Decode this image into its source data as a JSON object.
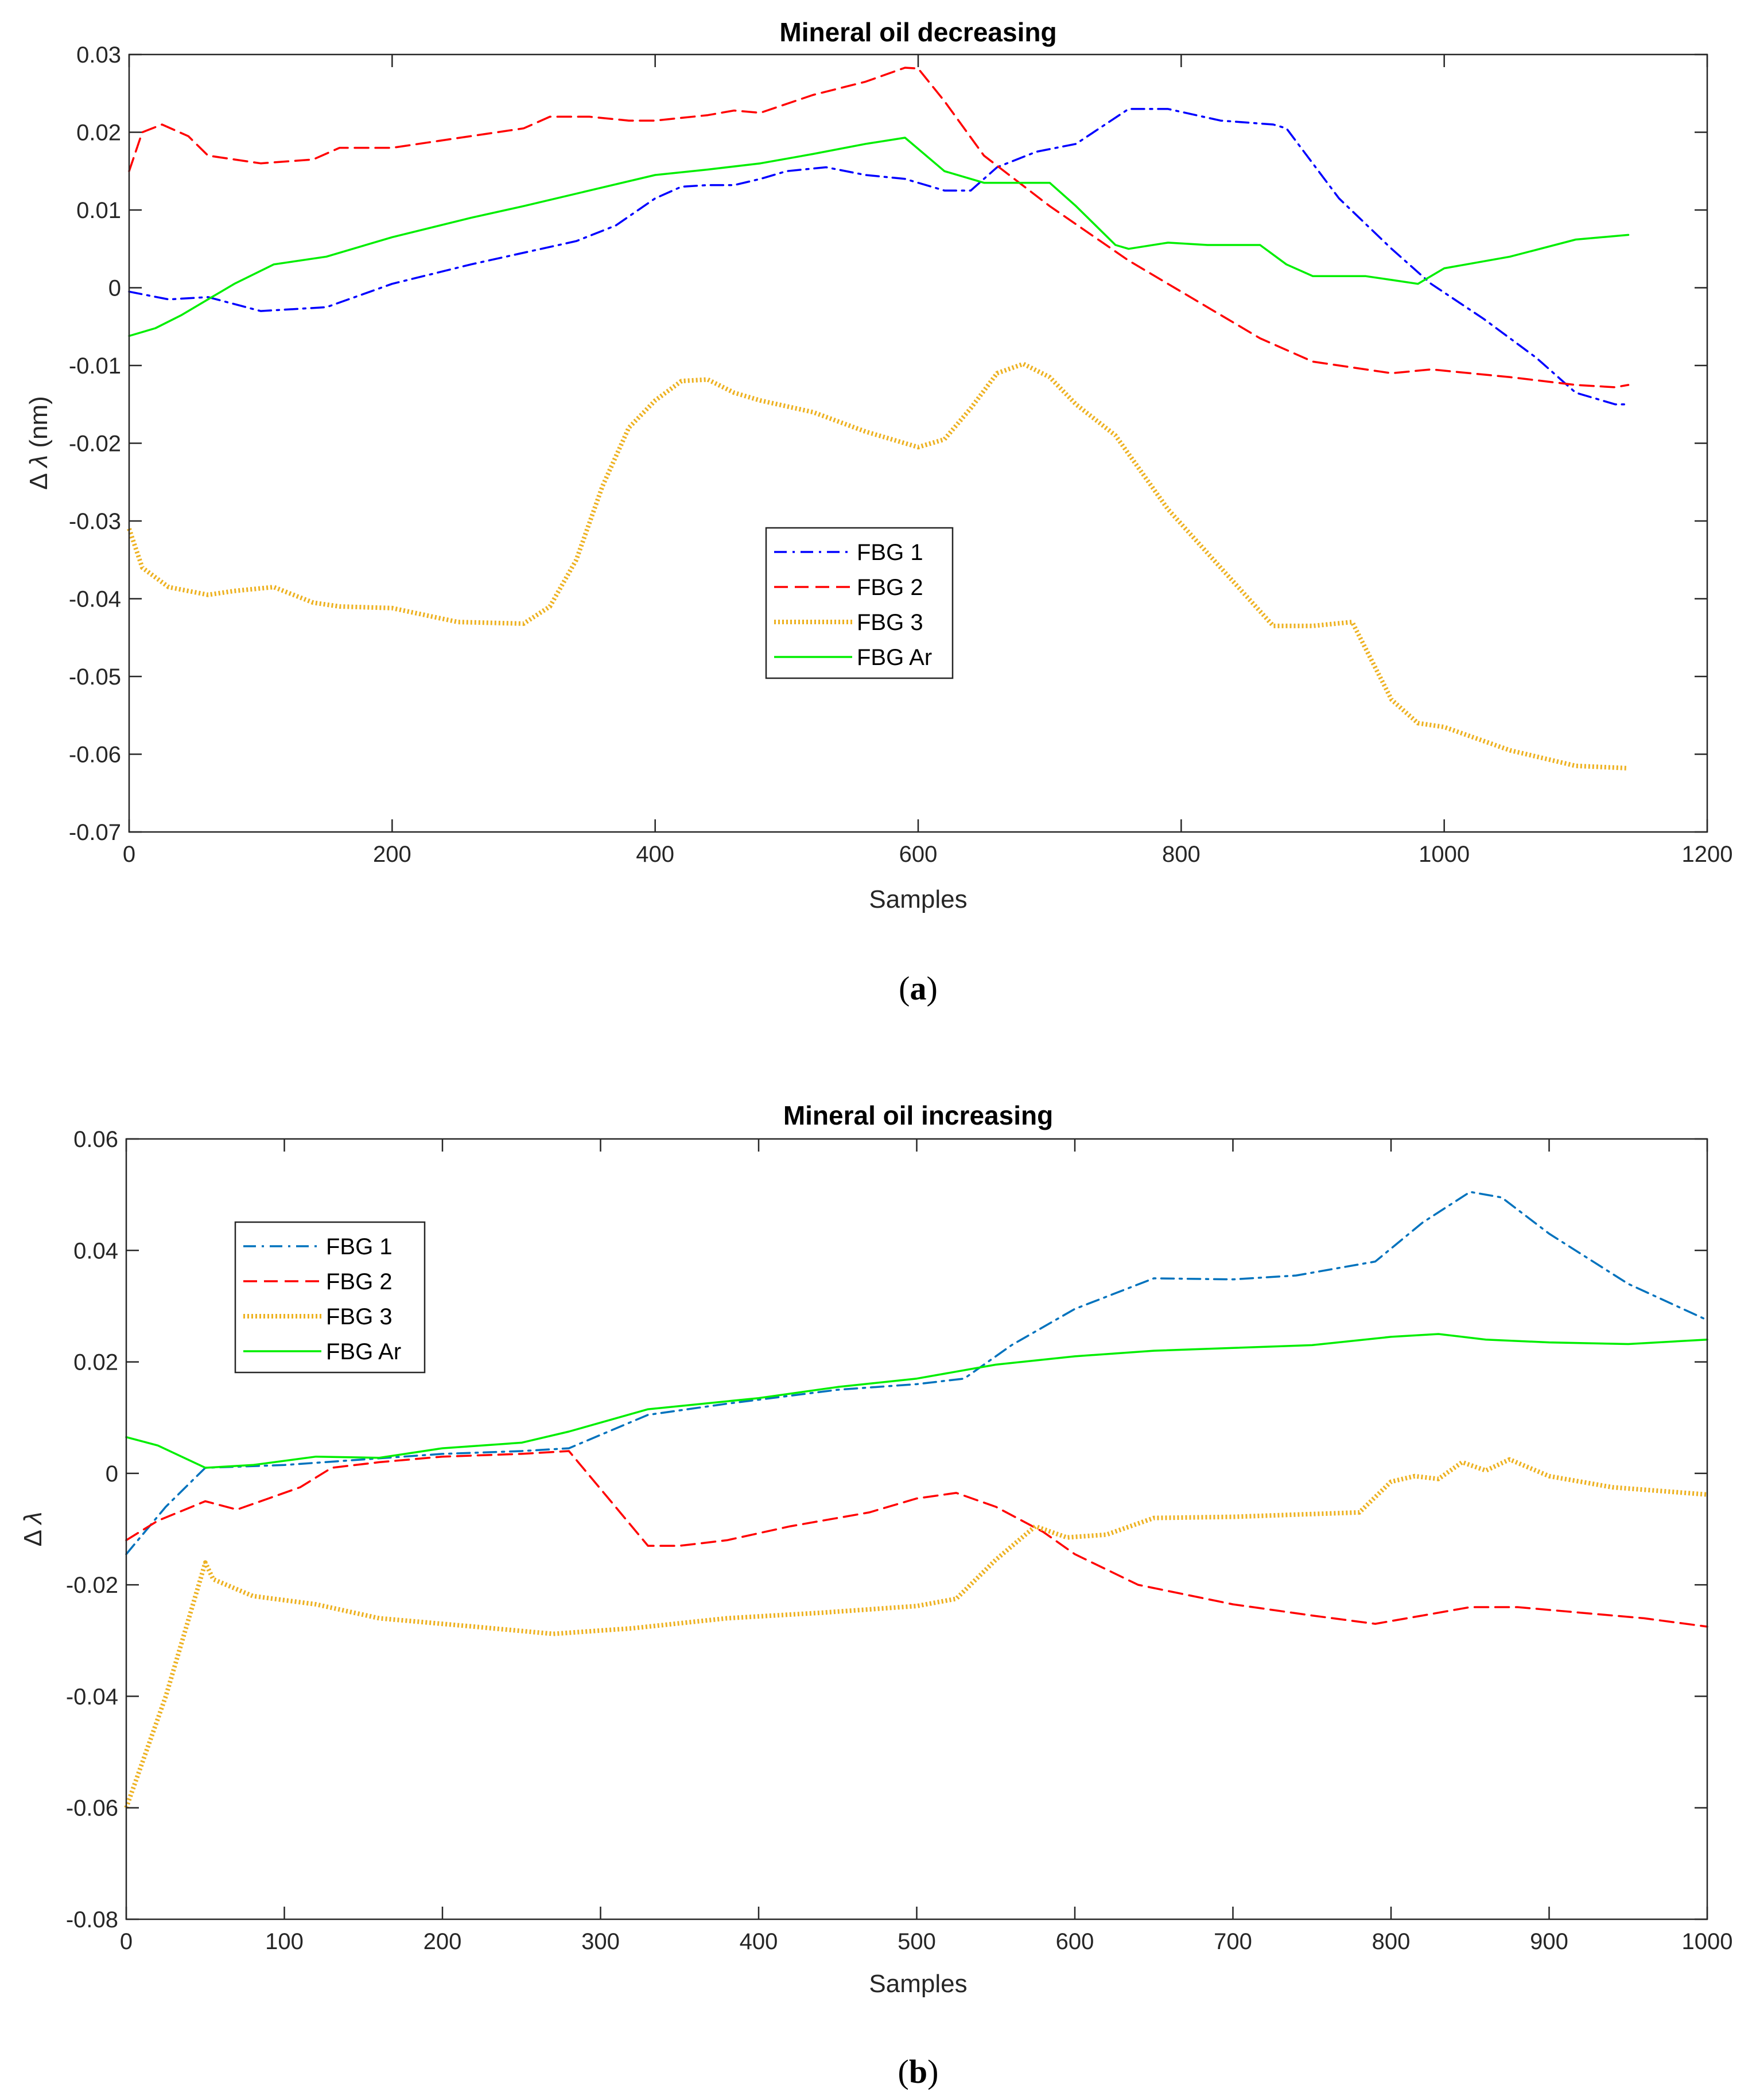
{
  "chart_data": [
    {
      "type": "line",
      "id": "a",
      "title": "Mineral oil decreasing",
      "xlabel": "Samples",
      "ylabel": "Δ λ (nm)",
      "ylabel_prefix": "Δ",
      "ylabel_sym": "λ",
      "ylabel_unit": " (nm)",
      "caption": "a",
      "xlim": [
        0,
        1200
      ],
      "ylim": [
        -0.07,
        0.03
      ],
      "xticks": [
        0,
        200,
        400,
        600,
        800,
        1000,
        1200
      ],
      "xtick_labels": [
        "0",
        "200",
        "400",
        "600",
        "800",
        "1000",
        "1200"
      ],
      "yticks": [
        -0.07,
        -0.06,
        -0.05,
        -0.04,
        -0.03,
        -0.02,
        -0.01,
        0,
        0.01,
        0.02,
        0.03
      ],
      "ytick_labels": [
        "-0.07",
        "-0.06",
        "-0.05",
        "-0.04",
        "-0.03",
        "-0.02",
        "-0.01",
        "0",
        "0.01",
        "0.02",
        "0.03"
      ],
      "legend_position": "center",
      "series": [
        {
          "name": "FBG 1",
          "color": "#0000ff",
          "style": "dashdot",
          "x": [
            0,
            30,
            60,
            100,
            150,
            200,
            260,
            300,
            340,
            370,
            400,
            420,
            440,
            460,
            480,
            500,
            530,
            560,
            590,
            620,
            640,
            660,
            690,
            720,
            760,
            790,
            830,
            870,
            880,
            920,
            960,
            990,
            1030,
            1070,
            1100,
            1130,
            1140
          ],
          "y": [
            -0.0005,
            -0.0015,
            -0.0012,
            -0.003,
            -0.0025,
            0.0005,
            0.003,
            0.0045,
            0.006,
            0.008,
            0.0115,
            0.013,
            0.0132,
            0.0132,
            0.014,
            0.015,
            0.0155,
            0.0145,
            0.014,
            0.0125,
            0.0125,
            0.0155,
            0.0175,
            0.0185,
            0.023,
            0.023,
            0.0215,
            0.021,
            0.0205,
            0.0115,
            0.005,
            0.0005,
            -0.004,
            -0.009,
            -0.0135,
            -0.015,
            -0.015
          ]
        },
        {
          "name": "FBG 2",
          "color": "#ff0000",
          "style": "dashed",
          "x": [
            0,
            10,
            25,
            45,
            60,
            100,
            140,
            160,
            200,
            240,
            300,
            320,
            350,
            380,
            400,
            440,
            460,
            480,
            520,
            560,
            590,
            600,
            620,
            650,
            700,
            760,
            800,
            860,
            900,
            960,
            990,
            1050,
            1100,
            1130,
            1140
          ],
          "y": [
            0.015,
            0.02,
            0.021,
            0.0195,
            0.017,
            0.016,
            0.0165,
            0.018,
            0.018,
            0.019,
            0.0205,
            0.022,
            0.022,
            0.0215,
            0.0215,
            0.0222,
            0.0228,
            0.0225,
            0.0248,
            0.0265,
            0.0283,
            0.0282,
            0.024,
            0.017,
            0.0105,
            0.0035,
            -0.0005,
            -0.0065,
            -0.0095,
            -0.011,
            -0.0105,
            -0.0115,
            -0.0125,
            -0.0128,
            -0.0125
          ]
        },
        {
          "name": "FBG 3",
          "color": "#edb120",
          "style": "dotted",
          "x": [
            0,
            10,
            30,
            60,
            80,
            110,
            140,
            160,
            200,
            250,
            300,
            320,
            340,
            360,
            380,
            400,
            420,
            440,
            460,
            480,
            520,
            560,
            600,
            620,
            640,
            660,
            680,
            700,
            720,
            750,
            790,
            830,
            870,
            900,
            930,
            960,
            980,
            1000,
            1050,
            1100,
            1140
          ],
          "y": [
            -0.031,
            -0.036,
            -0.0385,
            -0.0395,
            -0.039,
            -0.0385,
            -0.0405,
            -0.041,
            -0.0412,
            -0.043,
            -0.0432,
            -0.041,
            -0.035,
            -0.0255,
            -0.018,
            -0.0145,
            -0.012,
            -0.0118,
            -0.0135,
            -0.0145,
            -0.016,
            -0.0185,
            -0.0205,
            -0.0195,
            -0.0155,
            -0.011,
            -0.0098,
            -0.0115,
            -0.015,
            -0.019,
            -0.0285,
            -0.036,
            -0.0435,
            -0.0435,
            -0.043,
            -0.053,
            -0.056,
            -0.0565,
            -0.0595,
            -0.0615,
            -0.0618
          ]
        },
        {
          "name": "FBG Ar",
          "color": "#00ee00",
          "style": "solid",
          "x": [
            0,
            20,
            40,
            60,
            80,
            110,
            150,
            200,
            260,
            300,
            350,
            400,
            440,
            480,
            520,
            560,
            590,
            620,
            650,
            700,
            720,
            750,
            760,
            790,
            820,
            860,
            880,
            900,
            940,
            960,
            980,
            1000,
            1050,
            1100,
            1140
          ],
          "y": [
            -0.0062,
            -0.0052,
            -0.0035,
            -0.0015,
            0.0005,
            0.003,
            0.004,
            0.0065,
            0.009,
            0.0105,
            0.0125,
            0.0145,
            0.0152,
            0.016,
            0.0172,
            0.0185,
            0.0193,
            0.015,
            0.0135,
            0.0135,
            0.0105,
            0.0055,
            0.005,
            0.0058,
            0.0055,
            0.0055,
            0.003,
            0.0015,
            0.0015,
            0.001,
            0.0005,
            0.0025,
            0.004,
            0.0062,
            0.0068
          ]
        }
      ],
      "legend": [
        "FBG 1",
        "FBG 2",
        "FBG 3",
        "FBG Ar"
      ]
    },
    {
      "type": "line",
      "id": "b",
      "title": "Mineral oil increasing",
      "xlabel": "Samples",
      "ylabel": "Δ λ",
      "ylabel_prefix": "Δ",
      "ylabel_sym": "λ",
      "ylabel_unit": "",
      "caption": "b",
      "xlim": [
        0,
        1000
      ],
      "ylim": [
        -0.08,
        0.06
      ],
      "xticks": [
        0,
        100,
        200,
        300,
        400,
        500,
        600,
        700,
        800,
        900,
        1000
      ],
      "xtick_labels": [
        "0",
        "100",
        "200",
        "300",
        "400",
        "500",
        "600",
        "700",
        "800",
        "900",
        "1000"
      ],
      "yticks": [
        -0.08,
        -0.06,
        -0.04,
        -0.02,
        0,
        0.02,
        0.04,
        0.06
      ],
      "ytick_labels": [
        "-0.08",
        "-0.06",
        "-0.04",
        "-0.02",
        "0",
        "0.02",
        "0.04",
        "0.06"
      ],
      "legend_position": "top-left",
      "series": [
        {
          "name": "FBG 1",
          "color": "#0072bd",
          "style": "dashdot",
          "x": [
            0,
            25,
            50,
            100,
            150,
            200,
            250,
            280,
            330,
            380,
            450,
            500,
            530,
            560,
            600,
            650,
            700,
            740,
            790,
            820,
            850,
            870,
            900,
            950,
            1000
          ],
          "y": [
            -0.0145,
            -0.006,
            0.001,
            0.0015,
            0.0025,
            0.0035,
            0.004,
            0.0045,
            0.0105,
            0.0125,
            0.015,
            0.016,
            0.017,
            0.023,
            0.0295,
            0.035,
            0.0348,
            0.0355,
            0.038,
            0.045,
            0.0505,
            0.0495,
            0.043,
            0.034,
            0.0275
          ]
        },
        {
          "name": "FBG 2",
          "color": "#ff0000",
          "style": "dashed",
          "x": [
            0,
            20,
            50,
            70,
            90,
            110,
            130,
            160,
            200,
            250,
            280,
            330,
            350,
            380,
            420,
            470,
            500,
            525,
            550,
            580,
            600,
            640,
            700,
            750,
            790,
            820,
            850,
            880,
            920,
            960,
            1000
          ],
          "y": [
            -0.012,
            -0.0085,
            -0.005,
            -0.0065,
            -0.0045,
            -0.0025,
            0.001,
            0.002,
            0.003,
            0.0035,
            0.004,
            -0.013,
            -0.013,
            -0.012,
            -0.0095,
            -0.007,
            -0.0045,
            -0.0035,
            -0.006,
            -0.0105,
            -0.0145,
            -0.02,
            -0.0235,
            -0.0255,
            -0.027,
            -0.0255,
            -0.024,
            -0.024,
            -0.025,
            -0.026,
            -0.0275
          ]
        },
        {
          "name": "FBG 3",
          "color": "#edb120",
          "style": "dotted",
          "x": [
            0,
            25,
            50,
            55,
            80,
            120,
            160,
            220,
            270,
            320,
            380,
            440,
            500,
            525,
            550,
            575,
            595,
            620,
            650,
            700,
            780,
            800,
            815,
            830,
            845,
            860,
            875,
            900,
            940,
            1000
          ],
          "y": [
            -0.06,
            -0.04,
            -0.016,
            -0.019,
            -0.022,
            -0.0235,
            -0.026,
            -0.0275,
            -0.0288,
            -0.0278,
            -0.026,
            -0.025,
            -0.0238,
            -0.0225,
            -0.0155,
            -0.0095,
            -0.0115,
            -0.011,
            -0.008,
            -0.0078,
            -0.007,
            -0.0015,
            -0.0005,
            -0.001,
            0.002,
            0.0005,
            0.0025,
            -0.0005,
            -0.0025,
            -0.0038
          ]
        },
        {
          "name": "FBG Ar",
          "color": "#00ee00",
          "style": "solid",
          "x": [
            0,
            20,
            50,
            80,
            120,
            160,
            200,
            250,
            280,
            330,
            400,
            450,
            500,
            550,
            600,
            650,
            700,
            750,
            800,
            830,
            860,
            900,
            950,
            1000
          ],
          "y": [
            0.0065,
            0.005,
            0.001,
            0.0015,
            0.003,
            0.0028,
            0.0045,
            0.0055,
            0.0075,
            0.0115,
            0.0135,
            0.0155,
            0.017,
            0.0195,
            0.021,
            0.022,
            0.0225,
            0.023,
            0.0245,
            0.025,
            0.024,
            0.0235,
            0.0232,
            0.024
          ]
        }
      ],
      "legend": [
        "FBG 1",
        "FBG 2",
        "FBG 3",
        "FBG Ar"
      ]
    }
  ]
}
